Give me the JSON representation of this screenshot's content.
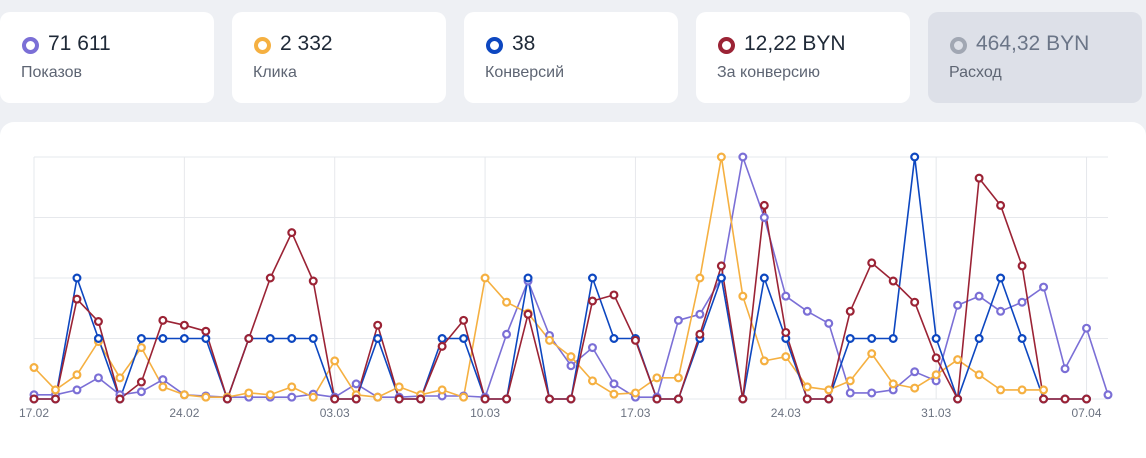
{
  "metrics": [
    {
      "value": "71 611",
      "label": "Показов",
      "color": "#7b6fd6",
      "muted": false
    },
    {
      "value": "2 332",
      "label": "Клика",
      "color": "#f5b041",
      "muted": false
    },
    {
      "value": "38",
      "label": "Конверсий",
      "color": "#0d47c0",
      "muted": false
    },
    {
      "value": "12,22 BYN",
      "label": "За конверсию",
      "color": "#9b2335",
      "muted": false
    },
    {
      "value": "464,32 BYN",
      "label": "Расход",
      "color": "#a1a7b3",
      "muted": true
    }
  ],
  "chart_data": {
    "type": "line",
    "x_tick_labels": [
      "17.02",
      "24.02",
      "03.03",
      "10.03",
      "17.03",
      "24.03",
      "31.03",
      "07.04"
    ],
    "grid": true,
    "y_axis_labels_visible": false,
    "y_max": 4,
    "series": [
      {
        "color": "#7b6fd6",
        "values": [
          0.07,
          0.07,
          0.15,
          0.35,
          0.07,
          0.12,
          0.32,
          0.07,
          0.05,
          0.03,
          0.03,
          0.03,
          0.03,
          0.08,
          0.03,
          0.25,
          0.03,
          0.03,
          0.05,
          0.05,
          0.05,
          0.03,
          1.07,
          1.95,
          1.05,
          0.55,
          0.85,
          0.25,
          0.03,
          0.03,
          1.3,
          1.4,
          2.0,
          4.0,
          3.0,
          1.7,
          1.45,
          1.25,
          0.1,
          0.1,
          0.15,
          0.45,
          0.3,
          1.55,
          1.7,
          1.45,
          1.6,
          1.85,
          0.5,
          1.17,
          0.07
        ]
      },
      {
        "color": "#f5b041",
        "values": [
          0.52,
          0.15,
          0.4,
          0.95,
          0.35,
          0.85,
          0.2,
          0.07,
          0.03,
          0.03,
          0.1,
          0.07,
          0.2,
          0.03,
          0.63,
          0.07,
          0.03,
          0.2,
          0.07,
          0.15,
          0.03,
          2.0,
          1.6,
          1.42,
          0.97,
          0.7,
          0.3,
          0.08,
          0.1,
          0.35,
          0.35,
          2.0,
          4.0,
          1.7,
          0.63,
          0.7,
          0.2,
          0.15,
          0.3,
          0.75,
          0.25,
          0.18,
          0.4,
          0.65,
          0.4,
          0.15,
          0.15,
          0.15
        ]
      },
      {
        "color": "#0d47c0",
        "values": [
          0.0,
          0.0,
          2.0,
          1.0,
          0.0,
          1.0,
          1.0,
          1.0,
          1.0,
          0.0,
          1.0,
          1.0,
          1.0,
          1.0,
          0.0,
          0.0,
          1.0,
          0.0,
          0.0,
          1.0,
          1.0,
          0.0,
          0.0,
          2.0,
          0.0,
          0.0,
          2.0,
          1.0,
          1.0,
          0.0,
          0.0,
          1.0,
          2.0,
          0.0,
          2.0,
          1.0,
          0.0,
          0.0,
          1.0,
          1.0,
          1.0,
          4.0,
          1.0,
          0.0,
          1.0,
          2.0,
          1.0,
          0.0,
          0.0,
          0.0
        ]
      },
      {
        "color": "#9b2335",
        "values": [
          0.0,
          0.0,
          1.65,
          1.28,
          0.0,
          0.28,
          1.3,
          1.22,
          1.12,
          0.0,
          1.0,
          2.0,
          2.75,
          1.95,
          0.0,
          0.0,
          1.22,
          0.0,
          0.0,
          0.87,
          1.3,
          0.0,
          0.0,
          1.4,
          0.0,
          0.0,
          1.62,
          1.72,
          0.97,
          0.0,
          0.0,
          1.07,
          2.2,
          0.0,
          3.2,
          1.1,
          0.0,
          0.0,
          1.45,
          2.25,
          1.95,
          1.6,
          0.68,
          0.0,
          3.65,
          3.2,
          2.2,
          0.0,
          0.0,
          0.0
        ]
      }
    ]
  }
}
